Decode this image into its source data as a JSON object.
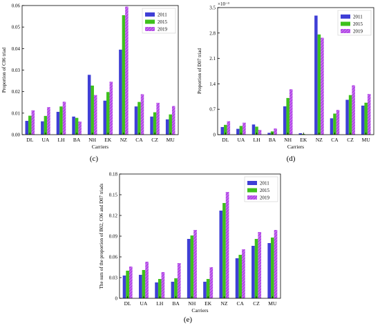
{
  "captions": {
    "c": "(c)",
    "d": "(d)",
    "e": "(e)"
  },
  "colors": {
    "2011": "#3f3fd6",
    "2015": "#3ec11c",
    "2019": "#b247e6"
  },
  "chart_data": [
    {
      "id": "c",
      "type": "bar",
      "categories": [
        "DL",
        "UA",
        "LH",
        "BA",
        "NH",
        "EK",
        "NZ",
        "CA",
        "CZ",
        "MU"
      ],
      "series": [
        {
          "name": "2011",
          "values": [
            0.0064,
            0.0062,
            0.0106,
            0.0084,
            0.0278,
            0.0158,
            0.0395,
            0.0131,
            0.0084,
            0.0071
          ]
        },
        {
          "name": "2015",
          "values": [
            0.0088,
            0.0087,
            0.0131,
            0.0078,
            0.0228,
            0.0198,
            0.0555,
            0.0152,
            0.0104,
            0.0094
          ]
        },
        {
          "name": "2019",
          "values": [
            0.0113,
            0.0128,
            0.0153,
            0.0061,
            0.0184,
            0.0246,
            0.0595,
            0.0188,
            0.0148,
            0.0133
          ]
        }
      ],
      "xlabel": "Carriers",
      "ylabel": "Proportion of C06 triad",
      "ylim": [
        0,
        0.06
      ],
      "yticks": [
        0,
        0.01,
        0.02,
        0.03,
        0.04,
        0.05,
        0.06
      ],
      "ytick_labels": [
        "0.00",
        "0.01",
        "0.02",
        "0.03",
        "0.04",
        "0.05",
        "0.06"
      ],
      "exponent_label": "",
      "legend": "top-right"
    },
    {
      "id": "d",
      "type": "bar",
      "categories": [
        "DL",
        "UA",
        "LH",
        "BA",
        "NH",
        "EK",
        "NZ",
        "CA",
        "CZ",
        "MU"
      ],
      "series": [
        {
          "name": "2011",
          "values": [
            0.21,
            0.16,
            0.28,
            0.05,
            0.78,
            0.04,
            3.28,
            0.45,
            0.96,
            0.8
          ]
        },
        {
          "name": "2015",
          "values": [
            0.27,
            0.24,
            0.22,
            0.09,
            1.01,
            0.02,
            2.76,
            0.58,
            1.09,
            0.88
          ]
        },
        {
          "name": "2019",
          "values": [
            0.37,
            0.33,
            0.13,
            0.17,
            1.25,
            0.0,
            2.67,
            0.68,
            1.36,
            1.12
          ]
        }
      ],
      "xlabel": "Carriers",
      "ylabel": "Proportion of D07 triad",
      "ylim": [
        0,
        3.5
      ],
      "yticks": [
        0,
        0.7,
        1.4,
        2.1,
        2.8,
        3.5
      ],
      "ytick_labels": [
        "0",
        "0.7",
        "1.4",
        "2.1",
        "2.8",
        "3.5"
      ],
      "exponent_label": "×10⁻³",
      "legend": "top-right"
    },
    {
      "id": "e",
      "type": "bar",
      "categories": [
        "DL",
        "UA",
        "LH",
        "BA",
        "NH",
        "EK",
        "NZ",
        "CA",
        "CZ",
        "MU"
      ],
      "series": [
        {
          "name": "2011",
          "values": [
            0.033,
            0.034,
            0.023,
            0.024,
            0.086,
            0.024,
            0.127,
            0.058,
            0.076,
            0.08
          ]
        },
        {
          "name": "2015",
          "values": [
            0.04,
            0.041,
            0.028,
            0.029,
            0.091,
            0.028,
            0.138,
            0.063,
            0.086,
            0.088
          ]
        },
        {
          "name": "2019",
          "values": [
            0.046,
            0.053,
            0.038,
            0.051,
            0.099,
            0.045,
            0.154,
            0.071,
            0.096,
            0.099
          ]
        }
      ],
      "xlabel": "Carriers",
      "ylabel": "The sum of the proportion of B02, C06 and D07 triads",
      "ylim": [
        0,
        0.18
      ],
      "yticks": [
        0,
        0.03,
        0.06,
        0.09,
        0.12,
        0.15,
        0.18
      ],
      "ytick_labels": [
        "0",
        "0.03",
        "0.06",
        "0.09",
        "0.12",
        "0.15",
        "0.18"
      ],
      "exponent_label": "",
      "legend": "top-right"
    }
  ]
}
